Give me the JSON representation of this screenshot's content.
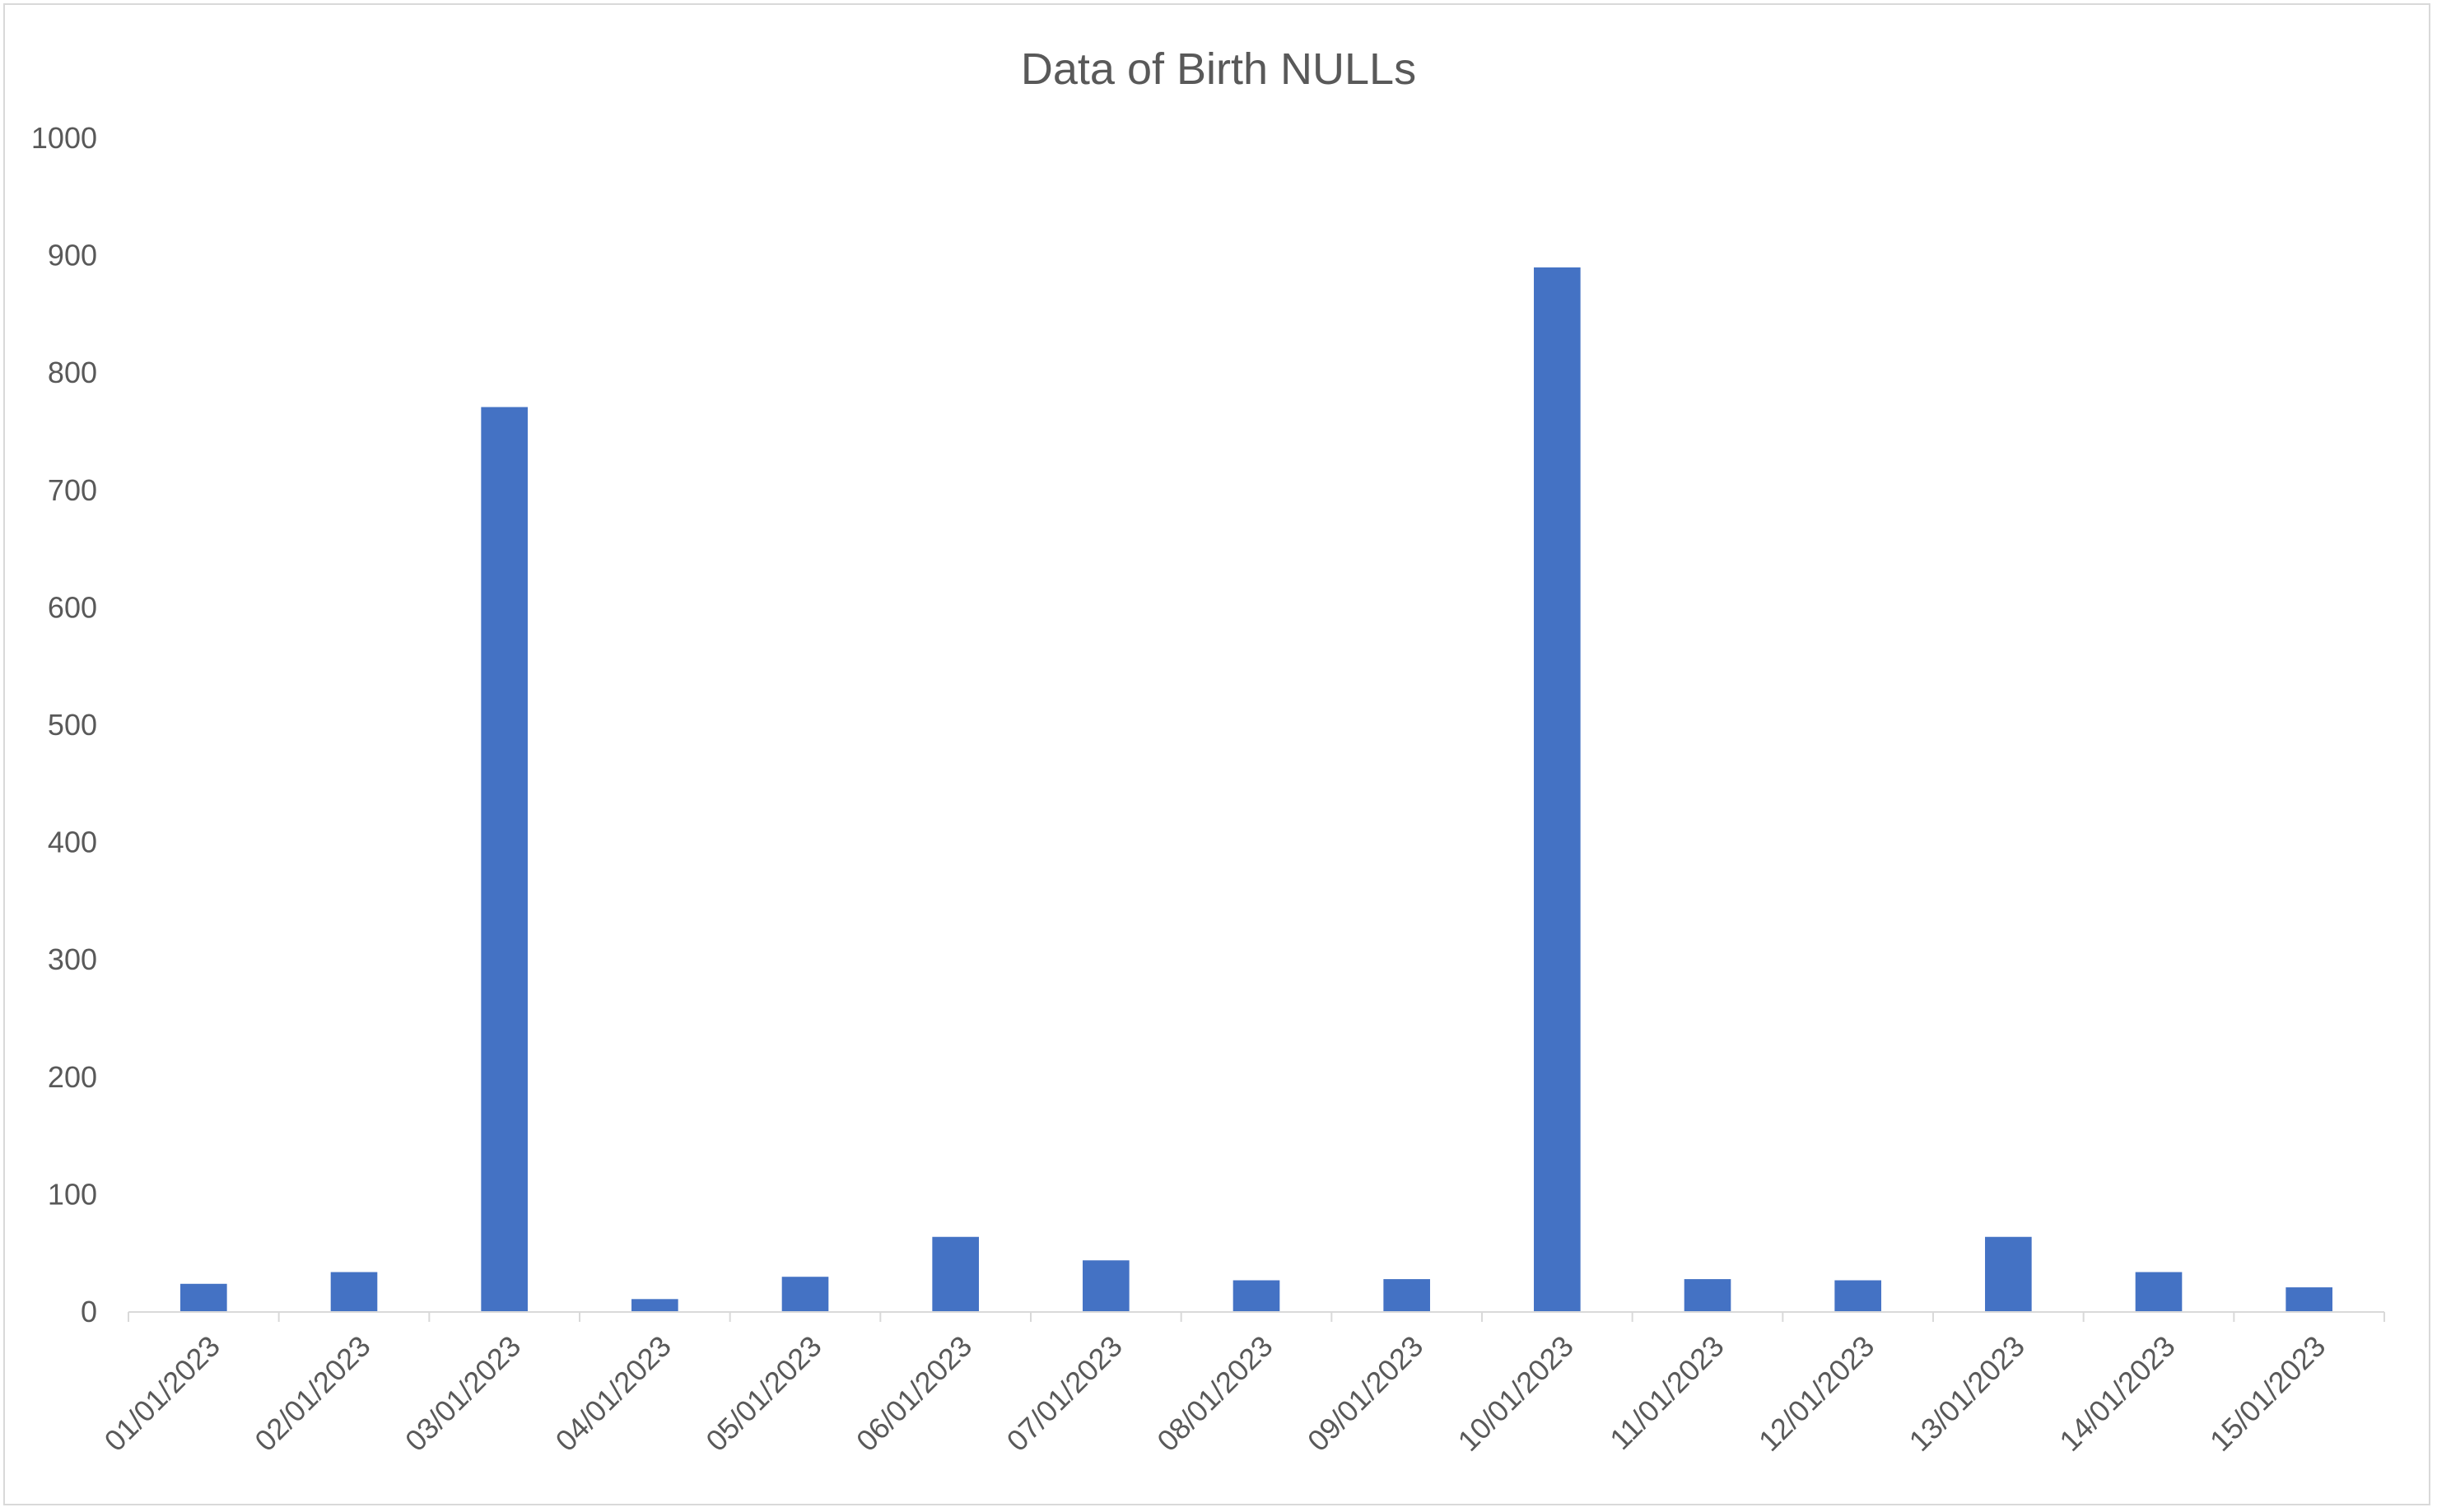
{
  "chart_data": {
    "type": "bar",
    "title": "Data of Birth NULLs",
    "xlabel": "",
    "ylabel": "",
    "categories": [
      "01/01/2023",
      "02/01/2023",
      "03/01/2023",
      "04/01/2023",
      "05/01/2023",
      "06/01/2023",
      "07/01/2023",
      "08/01/2023",
      "09/01/2023",
      "10/01/2023",
      "11/01/2023",
      "12/01/2023",
      "13/01/2023",
      "14/01/2023",
      "15/01/2023"
    ],
    "values": [
      24,
      34,
      771,
      11,
      30,
      64,
      44,
      27,
      28,
      890,
      28,
      27,
      64,
      34,
      21
    ],
    "ylim": [
      0,
      1000
    ],
    "yticks": [
      "0",
      "100",
      "200",
      "300",
      "400",
      "500",
      "600",
      "700",
      "800",
      "900",
      "1000"
    ],
    "grid": false,
    "legend": "none",
    "colors": {
      "bar": "#4472c4",
      "text": "#595959",
      "axis": "#d9d9d9"
    }
  }
}
